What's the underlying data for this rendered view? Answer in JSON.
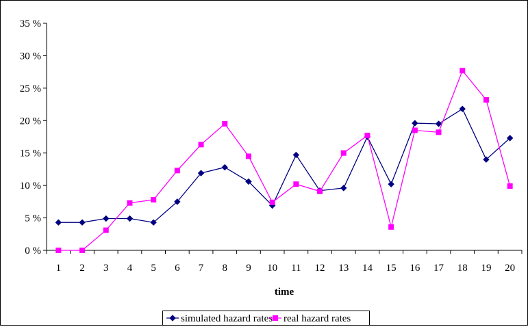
{
  "chart_data": {
    "type": "line",
    "xlabel": "time",
    "ylabel": "",
    "categories": [
      "1",
      "2",
      "3",
      "4",
      "5",
      "6",
      "7",
      "8",
      "9",
      "10",
      "11",
      "12",
      "13",
      "14",
      "15",
      "16",
      "17",
      "18",
      "19",
      "20"
    ],
    "ylim": [
      0,
      35
    ],
    "yticks": [
      "0 %",
      "5 %",
      "10 %",
      "15 %",
      "20 %",
      "25 %",
      "30 %",
      "35 %"
    ],
    "ytick_values": [
      0,
      5,
      10,
      15,
      20,
      25,
      30,
      35
    ],
    "grid": false,
    "legend_position": "bottom-center",
    "series": [
      {
        "name": "simulated hazard rates",
        "color": "#000080",
        "marker": "diamond",
        "values": [
          4.3,
          4.3,
          4.9,
          4.9,
          4.3,
          7.5,
          11.9,
          12.8,
          10.6,
          6.9,
          14.7,
          9.2,
          9.6,
          17.5,
          10.2,
          19.6,
          19.5,
          21.8,
          14.0,
          17.3
        ]
      },
      {
        "name": "real hazard rates",
        "color": "#FF00FF",
        "marker": "square",
        "values": [
          0.0,
          0.0,
          3.1,
          7.3,
          7.8,
          12.3,
          16.3,
          19.5,
          14.5,
          7.4,
          10.2,
          9.1,
          15.0,
          17.7,
          3.6,
          18.5,
          18.2,
          27.7,
          23.2,
          9.9
        ]
      }
    ]
  }
}
